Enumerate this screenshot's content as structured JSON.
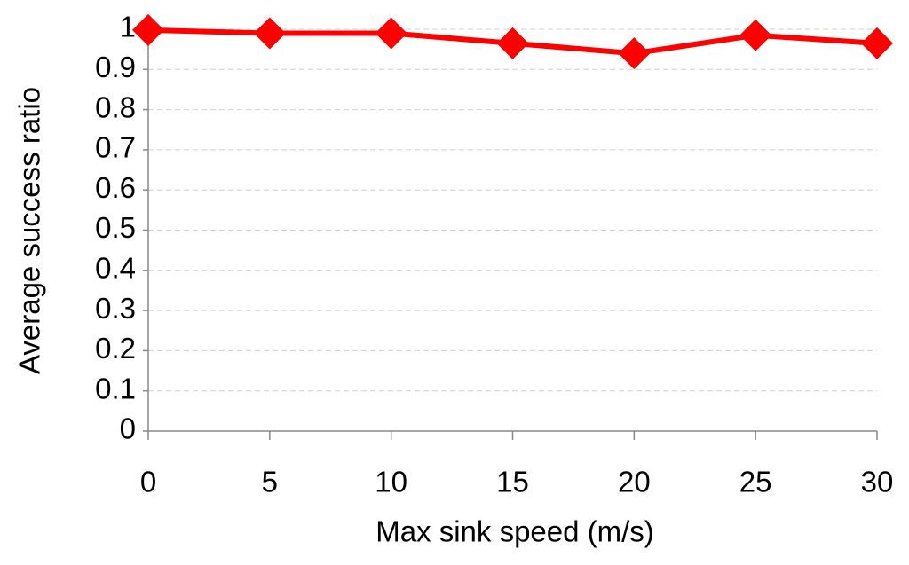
{
  "chart_data": {
    "type": "line",
    "x_label": "Max sink speed (m/s)",
    "y_label": "Average success ratio",
    "x": [
      0,
      5,
      10,
      15,
      20,
      25,
      30
    ],
    "series": [
      {
        "color": "#ff0000",
        "values": [
          0.998,
          0.99,
          0.99,
          0.965,
          0.94,
          0.985,
          0.965
        ]
      }
    ],
    "xlim": [
      0,
      30
    ],
    "xticks": [
      0,
      5,
      10,
      15,
      20,
      25,
      30
    ],
    "ylim": [
      0,
      1
    ],
    "yticks": [
      0,
      0.1,
      0.2,
      0.3,
      0.4,
      0.5,
      0.6,
      0.7,
      0.8,
      0.9,
      1
    ],
    "grid": true
  }
}
